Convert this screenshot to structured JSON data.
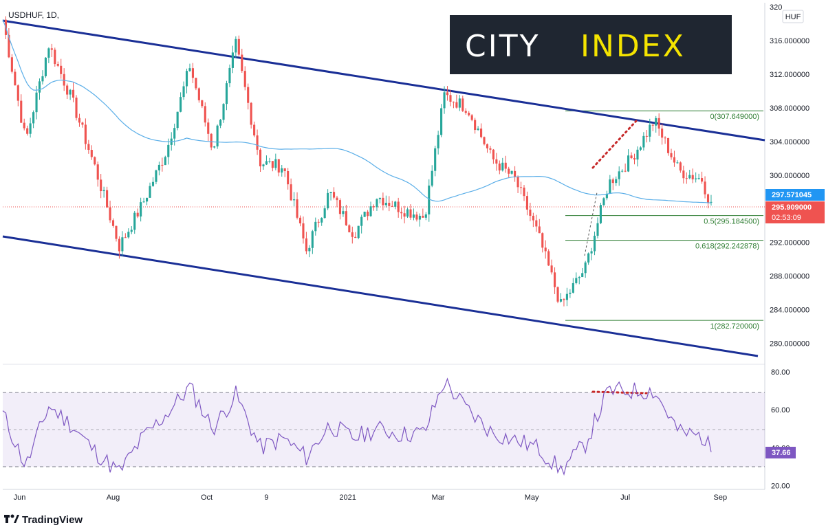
{
  "header": {
    "symbol": "USDHUF, 1D,",
    "currency_button": "HUF"
  },
  "logo": {
    "word1": "CITY",
    "word2": "INDEX",
    "bg": "#1f2631",
    "color1": "#ffffff",
    "color2": "#f5e400"
  },
  "footer": {
    "brand": "TradingView"
  },
  "price_tags": {
    "ma": {
      "value": "297.571045",
      "color": "#2196f3"
    },
    "last": {
      "value": "295.909000",
      "countdown": "02:53:09",
      "color": "#ef5350"
    },
    "rsi": {
      "value": "37.66",
      "color": "#7e57c2"
    }
  },
  "fib_levels": [
    {
      "label": "0(307.649000)",
      "price": 307.649
    },
    {
      "label": "0.5(295.184500)",
      "price": 295.1845
    },
    {
      "label": "0.618(292.242878)",
      "price": 292.242878
    },
    {
      "label": "1(282.720000)",
      "price": 282.72
    }
  ],
  "chart_data": [
    {
      "type": "candlestick",
      "title": "USDHUF, 1D,",
      "x_tick_labels": [
        "Jun",
        "Aug",
        "Oct",
        "9",
        "2021",
        "Mar",
        "May",
        "Jul",
        "Sep"
      ],
      "y_tick_labels": [
        "320",
        "316.000000",
        "312.000000",
        "308.000000",
        "304.000000",
        "300.000000",
        "296.000000",
        "292.000000",
        "288.000000",
        "284.000000",
        "280.000000"
      ],
      "ylim": [
        277.5,
        320.5
      ],
      "series": [
        {
          "name": "",
          "kind": "close",
          "x": [
            "2020-05-21",
            "2020-06-05",
            "2020-06-20",
            "2020-07-05",
            "2020-07-20",
            "2020-08-05",
            "2020-08-20",
            "2020-09-05",
            "2020-09-20",
            "2020-10-05",
            "2020-10-20",
            "2020-11-05",
            "2020-11-20",
            "2020-12-05",
            "2020-12-20",
            "2021-01-05",
            "2021-01-20",
            "2021-02-05",
            "2021-02-20",
            "2021-03-05",
            "2021-03-20",
            "2021-04-05",
            "2021-04-20",
            "2021-05-05",
            "2021-05-20",
            "2021-06-05",
            "2021-06-20",
            "2021-07-05",
            "2021-07-20",
            "2021-08-05",
            "2021-08-20",
            "2021-08-27"
          ],
          "values": [
            318.5,
            304.0,
            315.5,
            309.0,
            301.0,
            291.5,
            296.5,
            303.0,
            313.0,
            303.0,
            315.5,
            301.5,
            301.0,
            291.0,
            298.0,
            293.0,
            297.5,
            296.0,
            295.0,
            309.5,
            308.0,
            302.0,
            299.5,
            293.0,
            284.5,
            289.0,
            299.0,
            302.0,
            306.5,
            300.5,
            299.5,
            295.909
          ]
        },
        {
          "name": "",
          "kind": "moving-average",
          "color": "#5aaee8"
        }
      ],
      "channel_lines": "2 parallel descending trendlines",
      "grid": false,
      "legend": "none"
    },
    {
      "type": "line",
      "title": "RSI",
      "y_tick_labels": [
        "80.00",
        "60.00",
        "40.00",
        "20.00"
      ],
      "ylim": [
        18,
        84
      ],
      "bands": [
        30,
        70
      ],
      "midline": 50,
      "x": [
        "2020-05-21",
        "2020-06-05",
        "2020-06-20",
        "2020-07-05",
        "2020-07-20",
        "2020-08-05",
        "2020-08-20",
        "2020-09-05",
        "2020-09-20",
        "2020-10-05",
        "2020-10-20",
        "2020-11-05",
        "2020-11-20",
        "2020-12-05",
        "2020-12-20",
        "2021-01-05",
        "2021-01-20",
        "2021-02-05",
        "2021-02-20",
        "2021-03-05",
        "2021-03-20",
        "2021-04-05",
        "2021-04-20",
        "2021-05-05",
        "2021-05-20",
        "2021-06-05",
        "2021-06-20",
        "2021-07-05",
        "2021-07-20",
        "2021-08-05",
        "2021-08-20",
        "2021-08-27"
      ],
      "values": [
        58,
        30,
        62,
        52,
        38,
        27,
        45,
        58,
        72,
        50,
        68,
        40,
        45,
        35,
        52,
        45,
        50,
        47,
        48,
        75,
        60,
        48,
        44,
        40,
        28,
        42,
        70,
        70,
        70,
        48,
        46,
        37.66
      ],
      "color": "#7e57c2",
      "legend": "none"
    }
  ]
}
